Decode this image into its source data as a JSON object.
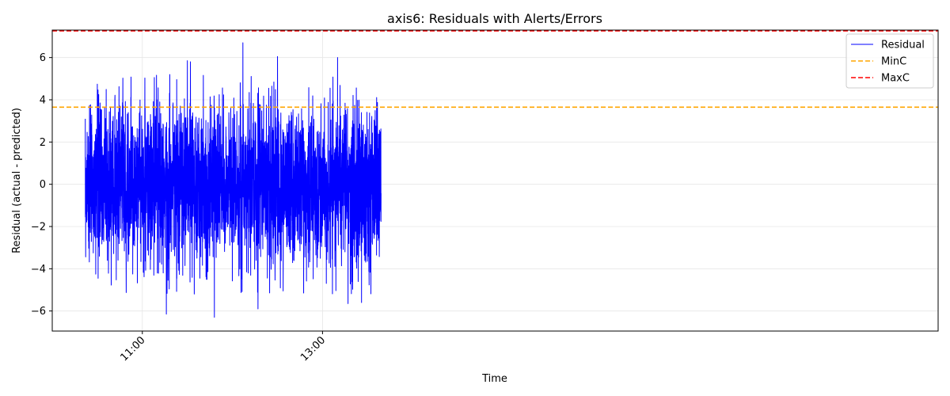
{
  "chart_data": {
    "type": "line",
    "title": "axis6: Residuals with Alerts/Errors",
    "xlabel": "Time",
    "ylabel": "Residual (actual - predicted)",
    "x_range_minutes": [
      600,
      1190
    ],
    "x_ticks": [
      {
        "label": "11:00",
        "minute": 660
      },
      {
        "label": "13:00",
        "minute": 780
      }
    ],
    "ylim": [
      -6.95,
      7.3
    ],
    "y_ticks": [
      -6,
      -4,
      -2,
      0,
      2,
      4,
      6
    ],
    "grid": true,
    "legend_position": "upper right",
    "series": [
      {
        "name": "Residual",
        "color": "#0000ff",
        "style": "solid",
        "x_start_minute": 622,
        "x_end_minute": 819,
        "n_points": 3000,
        "approx_std": 1.9,
        "notable_peaks": [
          {
            "minute": 690,
            "value": 5.85
          },
          {
            "minute": 692,
            "value": 5.8
          },
          {
            "minute": 676,
            "value": -6.15
          },
          {
            "minute": 727,
            "value": 6.7
          },
          {
            "minute": 750,
            "value": 6.05
          },
          {
            "minute": 790,
            "value": 6.0
          },
          {
            "minute": 708,
            "value": -6.3
          },
          {
            "minute": 737,
            "value": -5.9
          },
          {
            "minute": 797,
            "value": -5.65
          },
          {
            "minute": 806,
            "value": -5.6
          }
        ]
      },
      {
        "name": "MinC",
        "color": "#ffa500",
        "style": "dashed",
        "value": 3.65
      },
      {
        "name": "MaxC",
        "color": "#ff0000",
        "style": "dashed",
        "value": 7.3
      }
    ]
  }
}
